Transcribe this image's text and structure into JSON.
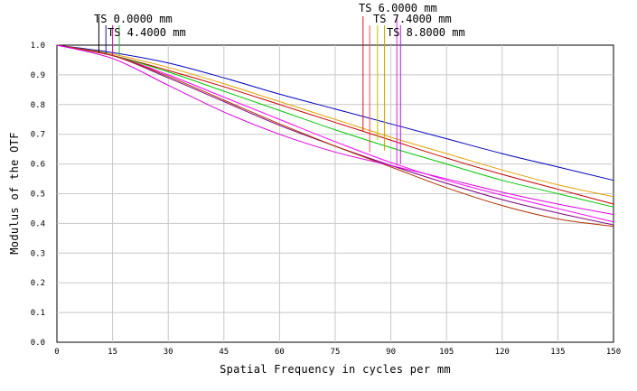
{
  "chart_data": {
    "type": "line",
    "title": "",
    "xlabel": "Spatial Frequency in cycles per mm",
    "ylabel": "Modulus of the OTF",
    "xlim": [
      0,
      150
    ],
    "ylim": [
      0,
      1
    ],
    "grid": true,
    "x_ticks": [
      "0",
      "15",
      "30",
      "45",
      "60",
      "75",
      "90",
      "105",
      "120",
      "135",
      "150"
    ],
    "y_ticks": [
      "0.0",
      "0.1",
      "0.2",
      "0.3",
      "0.4",
      "0.5",
      "0.6",
      "0.7",
      "0.8",
      "0.9",
      "1.0"
    ],
    "x": [
      0,
      15,
      30,
      45,
      60,
      75,
      90,
      105,
      120,
      135,
      150
    ],
    "legend": [
      {
        "label": "TS 0.0000 mm",
        "color": "#000000",
        "marker_x": 11.3,
        "marker_y": 0.975
      },
      {
        "label": "TS 4.4000 mm",
        "color": "#22c22c",
        "marker_x": 16.8,
        "marker_y": 0.965
      },
      {
        "label": "TS 6.0000 mm",
        "color": "#e01010",
        "marker_x": 82.5,
        "marker_y": 0.71
      },
      {
        "label": "TS 7.4000 mm",
        "color": "#c8a000",
        "marker_x": 88.3,
        "marker_y": 0.645
      },
      {
        "label": "TS 8.8000 mm",
        "color": "#e020e0",
        "marker_x": 91.6,
        "marker_y": 0.595
      }
    ],
    "extra_marker_colors": [
      {
        "color": "#1a1aa0",
        "marker_x": 13.2,
        "marker_y": 0.97
      },
      {
        "color": "#c81490",
        "marker_x": 15.0,
        "marker_y": 0.965
      },
      {
        "color": "#ff5050",
        "marker_x": 84.3,
        "marker_y": 0.64
      },
      {
        "color": "#c0c000",
        "marker_x": 86.4,
        "marker_y": 0.68
      },
      {
        "color": "#a020e0",
        "marker_x": 92.6,
        "marker_y": 0.6
      }
    ],
    "series": [
      {
        "color": "#0000c0",
        "values": [
          1.0,
          0.975,
          0.94,
          0.89,
          0.835,
          0.785,
          0.735,
          0.685,
          0.635,
          0.59,
          0.545
        ]
      },
      {
        "color": "#e8a000",
        "values": [
          1.0,
          0.97,
          0.925,
          0.87,
          0.81,
          0.75,
          0.69,
          0.635,
          0.58,
          0.53,
          0.49
        ]
      },
      {
        "color": "#c80000",
        "values": [
          1.0,
          0.965,
          0.915,
          0.86,
          0.8,
          0.74,
          0.68,
          0.62,
          0.565,
          0.515,
          0.465
        ]
      },
      {
        "color": "#00c800",
        "values": [
          1.0,
          0.965,
          0.91,
          0.845,
          0.78,
          0.715,
          0.655,
          0.6,
          0.545,
          0.5,
          0.455
        ]
      },
      {
        "color": "#ff00ff",
        "values": [
          1.0,
          0.965,
          0.9,
          0.825,
          0.75,
          0.675,
          0.605,
          0.545,
          0.495,
          0.45,
          0.405
        ]
      },
      {
        "color": "#800080",
        "values": [
          1.0,
          0.965,
          0.89,
          0.81,
          0.73,
          0.66,
          0.595,
          0.535,
          0.48,
          0.435,
          0.395
        ]
      },
      {
        "color": "#b03000",
        "values": [
          1.0,
          0.965,
          0.895,
          0.815,
          0.735,
          0.66,
          0.59,
          0.52,
          0.46,
          0.415,
          0.39
        ]
      },
      {
        "color": "#e000e0",
        "values": [
          1.0,
          0.955,
          0.865,
          0.775,
          0.7,
          0.64,
          0.595,
          0.55,
          0.505,
          0.465,
          0.43
        ]
      }
    ]
  }
}
